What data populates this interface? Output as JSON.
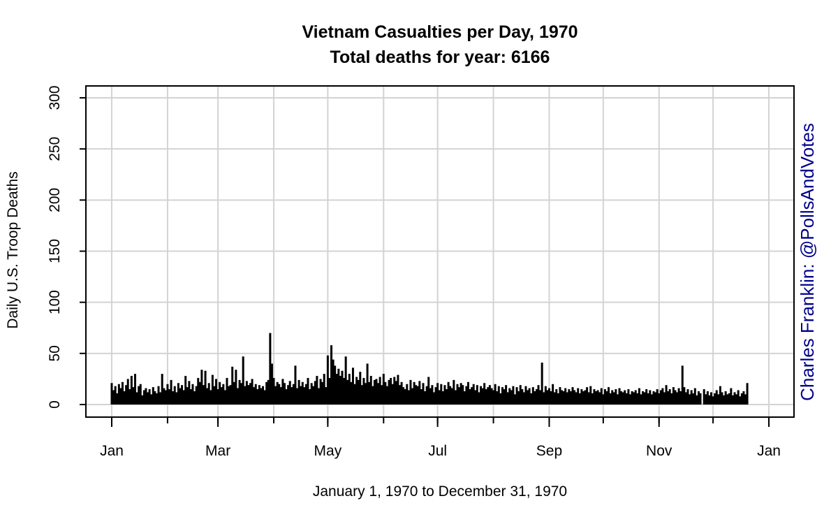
{
  "chart_data": {
    "type": "bar",
    "title": "Vietnam Casualties per Day, 1970",
    "subtitle": "Total deaths for year: 6166",
    "xlabel": "January 1, 1970 to December 31, 1970",
    "ylabel": "Daily U.S. Troop Deaths",
    "ylim": [
      0,
      300
    ],
    "yticks": [
      0,
      50,
      100,
      150,
      200,
      250,
      300
    ],
    "x_range": [
      "1970-01-01",
      "1971-01-01"
    ],
    "xticks": [
      {
        "label": "Jan",
        "date": "1970-01-01"
      },
      {
        "label": "Mar",
        "date": "1970-03-01"
      },
      {
        "label": "May",
        "date": "1970-05-01"
      },
      {
        "label": "Jul",
        "date": "1970-07-01"
      },
      {
        "label": "Sep",
        "date": "1970-09-01"
      },
      {
        "label": "Nov",
        "date": "1970-11-01"
      },
      {
        "label": "Jan",
        "date": "1971-01-01"
      }
    ],
    "grid_dates": [
      "1970-01-01",
      "1970-02-01",
      "1970-03-01",
      "1970-04-01",
      "1970-05-01",
      "1970-06-01",
      "1970-07-01",
      "1970-08-01",
      "1970-09-01",
      "1970-10-01",
      "1970-11-01",
      "1970-12-01",
      "1971-01-01"
    ],
    "grid": true,
    "series": [
      {
        "start_date": "1970-01-01",
        "values": [
          21,
          14,
          18,
          11,
          20,
          16,
          22,
          13,
          19,
          25,
          15,
          28,
          17,
          30,
          12,
          18,
          20,
          9,
          14,
          16,
          12,
          15,
          10,
          17,
          13,
          11,
          18,
          12,
          30,
          16,
          14,
          20,
          15,
          24,
          13,
          18,
          12,
          21,
          16,
          19,
          14,
          28,
          17,
          23,
          15,
          20,
          13,
          18,
          26,
          22,
          34,
          19,
          33,
          16,
          21,
          14,
          29,
          18,
          25,
          15,
          22,
          17,
          20,
          14,
          26,
          18,
          19,
          37,
          22,
          34,
          16,
          24,
          21,
          47,
          18,
          23,
          19,
          21,
          25,
          17,
          20,
          15,
          19,
          16,
          18,
          14,
          22,
          24,
          70,
          40,
          26,
          18,
          22,
          20,
          17,
          25,
          21,
          15,
          19,
          23,
          17,
          20,
          38,
          16,
          24,
          18,
          22,
          17,
          20,
          26,
          15,
          21,
          18,
          23,
          28,
          16,
          25,
          22,
          30,
          17,
          48,
          26,
          58,
          44,
          38,
          30,
          35,
          28,
          33,
          26,
          47,
          24,
          30,
          22,
          36,
          20,
          27,
          24,
          32,
          19,
          26,
          21,
          40,
          22,
          28,
          18,
          24,
          25,
          21,
          27,
          19,
          30,
          22,
          18,
          24,
          26,
          20,
          27,
          23,
          29,
          19,
          22,
          17,
          15,
          20,
          14,
          24,
          16,
          22,
          19,
          18,
          23,
          15,
          21,
          13,
          18,
          27,
          16,
          19,
          12,
          17,
          21,
          14,
          20,
          13,
          19,
          15,
          22,
          18,
          16,
          24,
          14,
          20,
          17,
          21,
          19,
          13,
          18,
          22,
          15,
          17,
          20,
          14,
          19,
          12,
          18,
          16,
          21,
          15,
          17,
          19,
          16,
          14,
          20,
          13,
          18,
          11,
          17,
          15,
          19,
          12,
          16,
          14,
          18,
          10,
          17,
          13,
          19,
          15,
          12,
          18,
          14,
          16,
          11,
          17,
          13,
          15,
          19,
          14,
          41,
          12,
          18,
          14,
          16,
          13,
          20,
          12,
          15,
          11,
          17,
          14,
          13,
          16,
          12,
          15,
          13,
          17,
          14,
          12,
          16,
          11,
          15,
          13,
          14,
          17,
          12,
          18,
          11,
          15,
          13,
          14,
          12,
          16,
          10,
          15,
          13,
          17,
          11,
          14,
          12,
          15,
          10,
          16,
          13,
          12,
          14,
          11,
          15,
          10,
          13,
          12,
          14,
          11,
          16,
          10,
          13,
          12,
          15,
          11,
          14,
          10,
          13,
          12,
          15,
          11,
          14,
          16,
          12,
          19,
          13,
          15,
          11,
          17,
          14,
          12,
          16,
          13,
          38,
          17,
          12,
          15,
          10,
          14,
          11,
          16,
          9,
          13,
          11,
          0,
          15,
          10,
          13,
          9,
          12,
          8,
          11,
          14,
          10,
          18,
          12,
          9,
          13,
          10,
          11,
          16,
          9,
          12,
          10,
          14,
          8,
          11,
          13,
          10,
          21
        ]
      }
    ]
  },
  "credit": "Charles Franklin: @PollsAndVotes",
  "colors": {
    "bars": "#000000",
    "grid": "#d3d3d3",
    "credit": "#00008b",
    "frame": "#000000"
  }
}
